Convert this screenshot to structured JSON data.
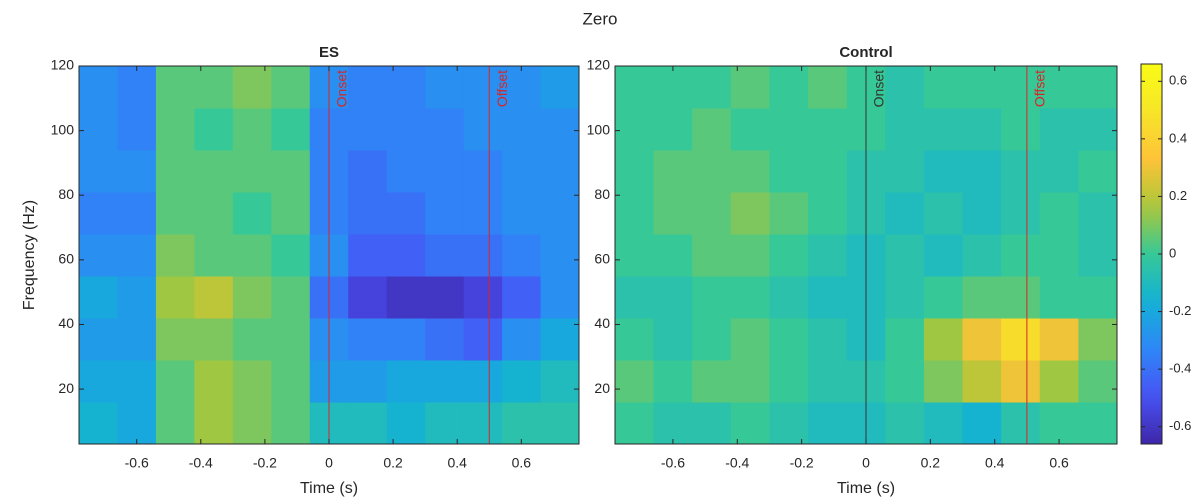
{
  "title": "Zero",
  "colorbar": {
    "colormap": "parula",
    "lim": [
      -0.66,
      0.66
    ],
    "ticks": [
      -0.6,
      -0.4,
      -0.2,
      0,
      0.2,
      0.4,
      0.6
    ]
  },
  "chart_data": [
    {
      "type": "heatmap",
      "title": "ES",
      "xlabel": "Time (s)",
      "ylabel": "Frequency (Hz)",
      "xlim": [
        -0.78,
        0.78
      ],
      "ylim": [
        3,
        120
      ],
      "xticks": [
        -0.6,
        -0.4,
        -0.2,
        0,
        0.2,
        0.4,
        0.6
      ],
      "yticks": [
        20,
        40,
        60,
        80,
        100,
        120
      ],
      "x_edges": [
        -0.78,
        -0.66,
        -0.54,
        -0.42,
        -0.3,
        -0.18,
        -0.06,
        0.06,
        0.18,
        0.3,
        0.42,
        0.54,
        0.66,
        0.78
      ],
      "y_edges": [
        3,
        16,
        29,
        42,
        55,
        68,
        81,
        94,
        107,
        120
      ],
      "z": [
        [
          -0.15,
          -0.2,
          0.05,
          0.15,
          0.1,
          0.05,
          -0.1,
          -0.1,
          -0.15,
          -0.1,
          -0.1,
          -0.05,
          -0.05
        ],
        [
          -0.2,
          -0.2,
          0.05,
          0.15,
          0.1,
          0.05,
          -0.25,
          -0.25,
          -0.2,
          -0.2,
          -0.2,
          -0.15,
          -0.1
        ],
        [
          -0.25,
          -0.25,
          0.1,
          0.1,
          0.05,
          0.05,
          -0.3,
          -0.35,
          -0.35,
          -0.4,
          -0.45,
          -0.3,
          -0.2
        ],
        [
          -0.2,
          -0.25,
          0.15,
          0.2,
          0.1,
          0.05,
          -0.4,
          -0.55,
          -0.6,
          -0.6,
          -0.55,
          -0.45,
          -0.3
        ],
        [
          -0.3,
          -0.3,
          0.1,
          0.05,
          0.05,
          0.0,
          -0.3,
          -0.45,
          -0.45,
          -0.4,
          -0.4,
          -0.35,
          -0.3
        ],
        [
          -0.35,
          -0.35,
          0.05,
          0.05,
          0.0,
          0.05,
          -0.35,
          -0.4,
          -0.4,
          -0.35,
          -0.35,
          -0.3,
          -0.3
        ],
        [
          -0.3,
          -0.3,
          0.05,
          0.05,
          0.05,
          0.05,
          -0.35,
          -0.4,
          -0.35,
          -0.35,
          -0.35,
          -0.3,
          -0.3
        ],
        [
          -0.3,
          -0.35,
          0.05,
          0.0,
          0.05,
          0.0,
          -0.35,
          -0.35,
          -0.35,
          -0.35,
          -0.3,
          -0.3,
          -0.3
        ],
        [
          -0.3,
          -0.35,
          0.05,
          0.05,
          0.1,
          0.05,
          -0.3,
          -0.35,
          -0.35,
          -0.3,
          -0.3,
          -0.3,
          -0.25
        ]
      ],
      "annotations": [
        {
          "x": 0,
          "label": "Onset",
          "color": "#d62728"
        },
        {
          "x": 0.5,
          "label": "Offset",
          "color": "#d62728"
        }
      ]
    },
    {
      "type": "heatmap",
      "title": "Control",
      "xlabel": "Time (s)",
      "xlim": [
        -0.78,
        0.78
      ],
      "ylim": [
        3,
        120
      ],
      "xticks": [
        -0.6,
        -0.4,
        -0.2,
        0,
        0.2,
        0.4,
        0.6
      ],
      "yticks": [
        20,
        40,
        60,
        80,
        100,
        120
      ],
      "x_edges": [
        -0.78,
        -0.66,
        -0.54,
        -0.42,
        -0.3,
        -0.18,
        -0.06,
        0.06,
        0.18,
        0.3,
        0.42,
        0.54,
        0.66,
        0.78
      ],
      "y_edges": [
        3,
        16,
        29,
        42,
        55,
        68,
        81,
        94,
        107,
        120
      ],
      "z": [
        [
          0.0,
          -0.05,
          -0.05,
          0.0,
          -0.05,
          -0.1,
          -0.1,
          -0.05,
          -0.1,
          -0.15,
          -0.05,
          0.0,
          0.0
        ],
        [
          0.05,
          0.0,
          0.05,
          0.05,
          0.0,
          -0.05,
          -0.05,
          0.0,
          0.1,
          0.2,
          0.3,
          0.15,
          0.05
        ],
        [
          0.0,
          -0.05,
          0.0,
          0.05,
          0.0,
          -0.05,
          -0.1,
          0.0,
          0.15,
          0.3,
          0.45,
          0.3,
          0.1
        ],
        [
          -0.05,
          -0.05,
          0.0,
          0.0,
          -0.05,
          -0.1,
          -0.1,
          -0.05,
          0.0,
          0.05,
          0.05,
          0.0,
          0.0
        ],
        [
          0.0,
          0.0,
          0.05,
          0.05,
          0.0,
          -0.05,
          -0.1,
          -0.05,
          -0.1,
          -0.05,
          0.0,
          0.0,
          -0.05
        ],
        [
          0.0,
          0.05,
          0.05,
          0.1,
          0.05,
          0.0,
          -0.05,
          -0.1,
          -0.05,
          -0.1,
          -0.05,
          0.0,
          -0.05
        ],
        [
          0.0,
          0.05,
          0.05,
          0.05,
          0.0,
          0.0,
          -0.05,
          -0.05,
          -0.1,
          -0.1,
          -0.05,
          -0.05,
          0.0
        ],
        [
          0.0,
          0.0,
          0.05,
          0.0,
          0.0,
          0.0,
          0.0,
          -0.05,
          -0.05,
          -0.05,
          0.0,
          -0.05,
          -0.05
        ],
        [
          0.0,
          0.0,
          0.0,
          0.05,
          0.0,
          0.05,
          0.0,
          -0.05,
          0.0,
          0.0,
          0.0,
          0.0,
          0.0
        ]
      ],
      "annotations": [
        {
          "x": 0,
          "label": "Onset",
          "color": "#333333"
        },
        {
          "x": 0.5,
          "label": "Offset",
          "color": "#d62728"
        }
      ]
    }
  ]
}
